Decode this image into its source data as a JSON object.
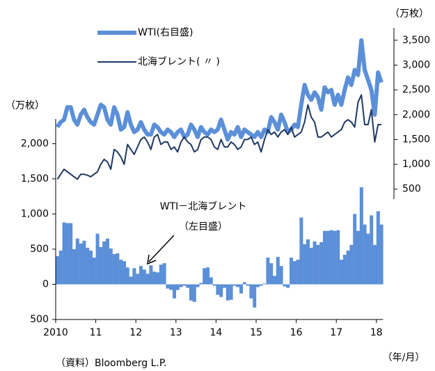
{
  "chart_data": {
    "type": "bar",
    "left_unit": "（万枚）",
    "right_unit": "（万枚）",
    "x_unit": "（年/月）",
    "source": "（資料）Bloomberg L.P.",
    "annotation": "（左目盛）",
    "categories": [
      "2010",
      null,
      null,
      null,
      null,
      null,
      null,
      null,
      null,
      null,
      null,
      null,
      "11",
      null,
      null,
      null,
      null,
      null,
      null,
      null,
      null,
      null,
      null,
      null,
      "12",
      null,
      null,
      null,
      null,
      null,
      null,
      null,
      null,
      null,
      null,
      null,
      "13",
      null,
      null,
      null,
      null,
      null,
      null,
      null,
      null,
      null,
      null,
      null,
      "14",
      null,
      null,
      null,
      null,
      null,
      null,
      null,
      null,
      null,
      null,
      null,
      "15",
      null,
      null,
      null,
      null,
      null,
      null,
      null,
      null,
      null,
      null,
      null,
      "16",
      null,
      null,
      null,
      null,
      null,
      null,
      null,
      null,
      null,
      null,
      null,
      "17",
      null,
      null,
      null,
      null,
      null,
      null,
      null,
      null,
      null,
      null,
      null,
      "18",
      null
    ],
    "series": [
      {
        "name": "WTI(右目盛)",
        "type": "line",
        "axis": "y2",
        "color": "#5b8fd8",
        "values": [
          1750,
          1850,
          1900,
          2150,
          2150,
          1900,
          1800,
          2000,
          2100,
          1950,
          1850,
          1800,
          2000,
          2200,
          2150,
          1900,
          1800,
          2150,
          2000,
          1700,
          1750,
          2050,
          1800,
          1650,
          1700,
          1850,
          1700,
          1600,
          1600,
          1800,
          1750,
          1650,
          1600,
          1700,
          1650,
          1550,
          1650,
          1700,
          1550,
          1600,
          1800,
          1700,
          1550,
          1750,
          1650,
          1600,
          1700,
          1650,
          1700,
          1900,
          1700,
          1500,
          1650,
          1600,
          1750,
          1550,
          1700,
          1650,
          1600,
          1550,
          1650,
          1550,
          1700,
          1650,
          1950,
          1850,
          1700,
          2000,
          1850,
          1650,
          1700,
          1800,
          1750,
          2200,
          2600,
          2400,
          2300,
          2450,
          2350,
          2100,
          2550,
          2450,
          2500,
          2200,
          2400,
          2200,
          2500,
          2750,
          2600,
          2900,
          2800,
          3500,
          2900,
          2700,
          2500,
          2000,
          2850,
          2650
        ]
      },
      {
        "name": "北海ブレント( 〃 )",
        "type": "line",
        "axis": "y2",
        "color": "#1f3864",
        "values": [
          700,
          800,
          900,
          850,
          800,
          750,
          700,
          800,
          800,
          780,
          750,
          800,
          850,
          1000,
          1100,
          1050,
          900,
          1300,
          1250,
          1150,
          1000,
          1400,
          1300,
          1200,
          1350,
          1500,
          1550,
          1450,
          1300,
          1550,
          1600,
          1400,
          1450,
          1450,
          1300,
          1350,
          1250,
          1450,
          1550,
          1450,
          1400,
          1250,
          1300,
          1500,
          1550,
          1550,
          1500,
          1350,
          1300,
          1500,
          1350,
          1350,
          1450,
          1400,
          1300,
          1350,
          1500,
          1500,
          1550,
          1400,
          1450,
          1250,
          1500,
          1700,
          1600,
          1650,
          1550,
          1650,
          1700,
          1600,
          1750,
          1550,
          1600,
          1650,
          1850,
          2200,
          1950,
          1850,
          1550,
          1550,
          1600,
          1650,
          1550,
          1600,
          1650,
          1700,
          1850,
          1900,
          1850,
          1750,
          2250,
          2400,
          1800,
          1800,
          2100,
          1450,
          1800,
          1800
        ]
      },
      {
        "name": "WTI－北海ブレント",
        "type": "bar",
        "color": "#5b8fd8",
        "values": [
          400,
          480,
          880,
          870,
          870,
          500,
          650,
          580,
          620,
          520,
          480,
          380,
          720,
          530,
          610,
          650,
          510,
          430,
          440,
          350,
          330,
          240,
          110,
          230,
          150,
          260,
          210,
          150,
          270,
          180,
          170,
          280,
          300,
          -60,
          -80,
          -200,
          -80,
          -40,
          -20,
          -50,
          -230,
          -250,
          -40,
          20,
          230,
          240,
          100,
          -20,
          -150,
          -180,
          -50,
          -230,
          -220,
          -20,
          -40,
          -130,
          30,
          -20,
          -200,
          -330,
          -40,
          -20,
          10,
          380,
          300,
          120,
          390,
          260,
          -30,
          -50,
          380,
          330,
          350,
          950,
          570,
          640,
          520,
          610,
          560,
          600,
          760,
          760,
          770,
          760,
          770,
          350,
          420,
          480,
          560,
          1000,
          760,
          1380,
          850,
          720,
          980,
          560,
          1040,
          850
        ]
      }
    ],
    "ylim": [
      -500,
      2350
    ],
    "yticks": [
      {
        "value": -500,
        "label": "500"
      },
      0,
      500,
      {
        "value": 1000,
        "label": "1,000"
      },
      {
        "value": 1500,
        "label": "1,500"
      },
      {
        "value": 2000,
        "label": "2,000"
      }
    ],
    "y2lim": [
      300,
      3750
    ],
    "y2ticks": [
      500,
      {
        "value": 1000,
        "label": "1,000"
      },
      {
        "value": 1500,
        "label": "1,500"
      },
      {
        "value": 2000,
        "label": "2,000"
      },
      {
        "value": 2500,
        "label": "2,500"
      },
      {
        "value": 3000,
        "label": "3,000"
      },
      {
        "value": 3500,
        "label": "3,500"
      }
    ]
  }
}
